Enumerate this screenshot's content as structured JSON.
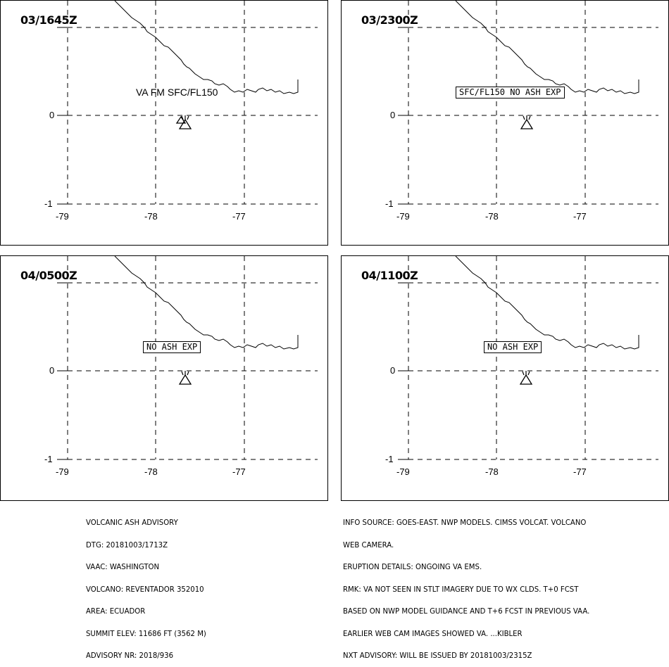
{
  "panels": [
    {
      "title": "03/1645Z",
      "label": "VA FM SFC/FL150",
      "label_boxed": false
    },
    {
      "title": "03/2300Z",
      "label": "SFC/FL150 NO ASH EXP",
      "label_boxed": true
    },
    {
      "title": "04/0500Z",
      "label": "NO ASH EXP",
      "label_boxed": true
    },
    {
      "title": "04/1100Z",
      "label": "NO ASH EXP",
      "label_boxed": true
    }
  ],
  "axes": {
    "x_ticks": [
      "-79",
      "-78",
      "-77"
    ],
    "y_ticks": [
      "0",
      "-1"
    ]
  },
  "volcano_symbol": "volcano-icon",
  "advisory_left": [
    "VOLCANIC ASH ADVISORY",
    "DTG: 20181003/1713Z",
    "VAAC: WASHINGTON",
    "VOLCANO: REVENTADOR 352010",
    "AREA: ECUADOR",
    "SUMMIT ELEV: 11686 FT (3562 M)",
    "ADVISORY NR: 2018/936"
  ],
  "advisory_right": [
    "INFO SOURCE: GOES-EAST. NWP MODELS. CIMSS VOLCAT. VOLCANO",
    "WEB CAMERA.",
    "ERUPTION DETAILS: ONGOING VA EMS.",
    "RMK: VA NOT SEEN IN STLT IMAGERY DUE TO WX CLDS. T+0 FCST",
    "BASED ON NWP MODEL GUIDANCE AND T+6 FCST IN PREVIOUS VAA.",
    "EARLIER WEB CAM IMAGES SHOWED VA. ...KIBLER",
    "NXT ADVISORY: WILL BE ISSUED BY 20181003/2315Z"
  ]
}
